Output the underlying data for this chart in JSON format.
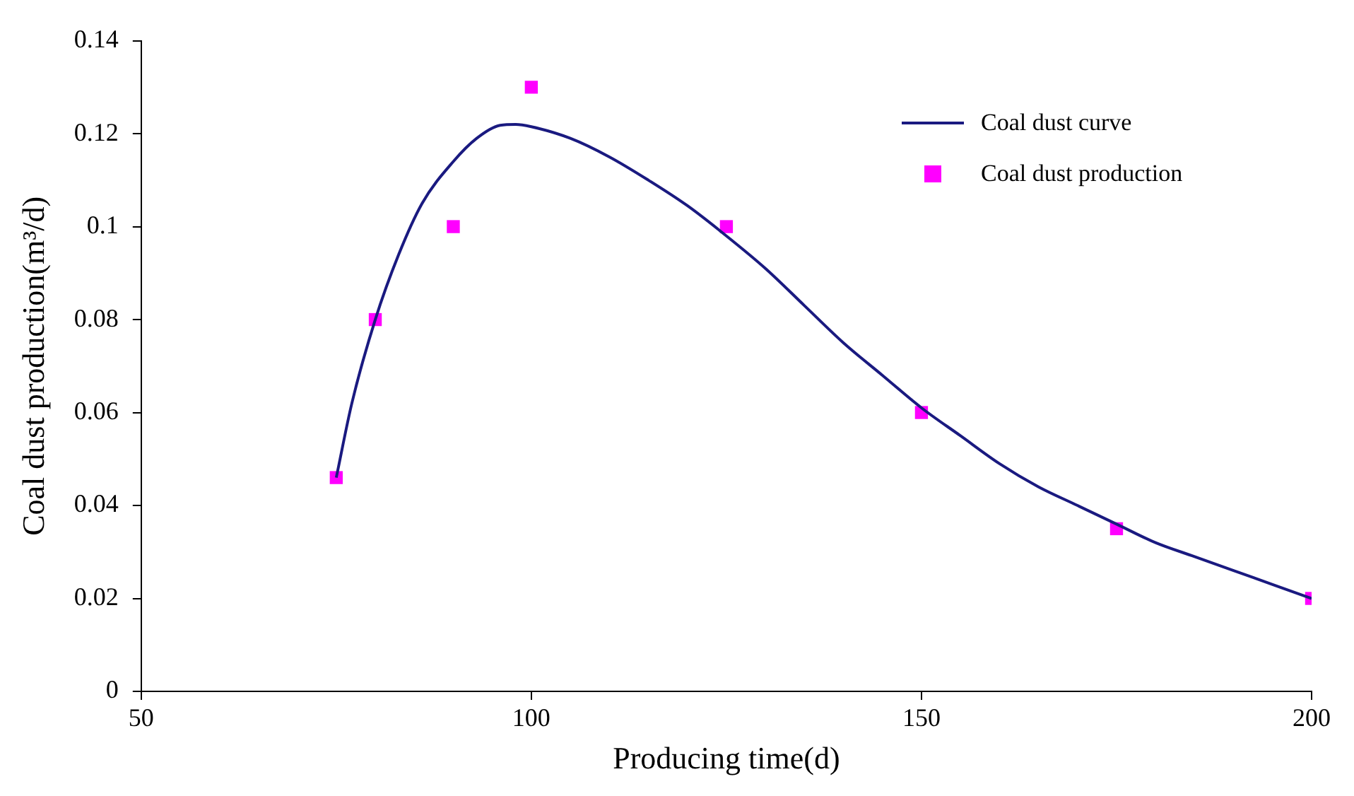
{
  "chart_data": {
    "type": "line",
    "xlabel": "Producing time(d)",
    "ylabel": "Coal dust production(m³/d)",
    "xlim": [
      50,
      200
    ],
    "xticks": [
      50,
      100,
      150,
      200
    ],
    "ylim": [
      0,
      0.14
    ],
    "yticks": [
      0,
      0.02,
      0.04,
      0.06,
      0.08,
      0.1,
      0.12,
      0.14
    ],
    "grid": false,
    "legend": "top right",
    "series": [
      {
        "name": "Coal dust curve",
        "color": "#1a1a80",
        "marker": "none",
        "line_style": "solid",
        "x": [
          75,
          77,
          80,
          83,
          86,
          90,
          93,
          96,
          98,
          100,
          105,
          110,
          115,
          120,
          125,
          130,
          135,
          140,
          145,
          150,
          155,
          160,
          165,
          170,
          175,
          180,
          185,
          190,
          195,
          200
        ],
        "values": [
          0.046,
          0.062,
          0.08,
          0.094,
          0.105,
          0.114,
          0.119,
          0.1218,
          0.122,
          0.1215,
          0.119,
          0.115,
          0.11,
          0.1045,
          0.098,
          0.091,
          0.083,
          0.075,
          0.068,
          0.061,
          0.055,
          0.049,
          0.044,
          0.04,
          0.036,
          0.032,
          0.029,
          0.026,
          0.023,
          0.02
        ]
      },
      {
        "name": "Coal dust production",
        "type": "scatter",
        "color": "#ff00ff",
        "marker": "square",
        "x": [
          75,
          80,
          90,
          100,
          125,
          150,
          175,
          200
        ],
        "values": [
          0.046,
          0.08,
          0.1,
          0.13,
          0.1,
          0.06,
          0.035,
          0.02
        ]
      }
    ]
  }
}
